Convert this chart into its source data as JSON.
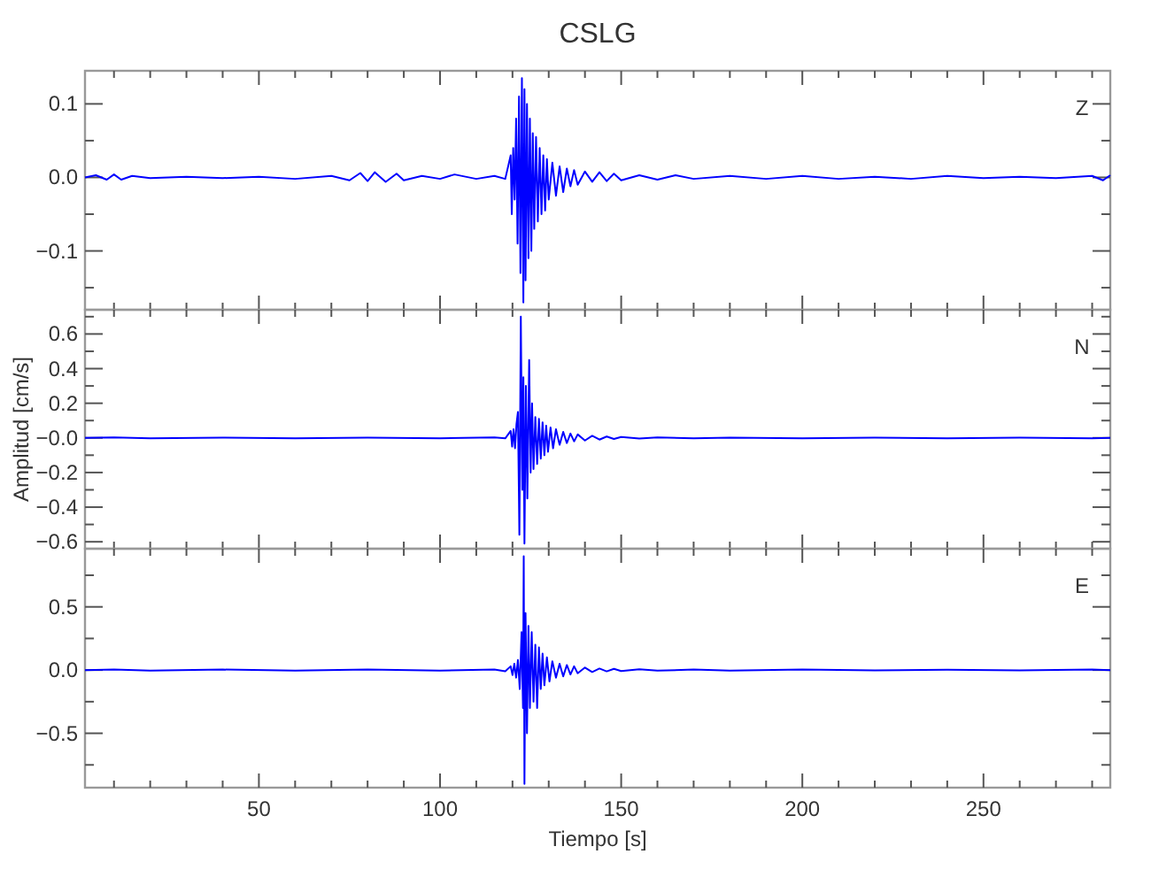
{
  "chart_data": [
    {
      "type": "line",
      "title": "CSLG",
      "annotations": [
        "Z"
      ],
      "xlim": [
        2,
        285
      ],
      "ylim": [
        -0.18,
        0.145
      ],
      "tick_labels": "y",
      "xticks": [
        {
          "value": 10,
          "label": null
        },
        {
          "value": 20,
          "label": null
        },
        {
          "value": 30,
          "label": null
        },
        {
          "value": 40,
          "label": null
        },
        50,
        {
          "value": 60,
          "label": null
        },
        {
          "value": 70,
          "label": null
        },
        {
          "value": 80,
          "label": null
        },
        {
          "value": 90,
          "label": null
        },
        100,
        {
          "value": 110,
          "label": null
        },
        {
          "value": 120,
          "label": null
        },
        {
          "value": 130,
          "label": null
        },
        {
          "value": 140,
          "label": null
        },
        150,
        {
          "value": 160,
          "label": null
        },
        {
          "value": 170,
          "label": null
        },
        {
          "value": 180,
          "label": null
        },
        {
          "value": 190,
          "label": null
        },
        200,
        {
          "value": 210,
          "label": null
        },
        {
          "value": 220,
          "label": null
        },
        {
          "value": 230,
          "label": null
        },
        {
          "value": 240,
          "label": null
        },
        250,
        {
          "value": 260,
          "label": null
        },
        {
          "value": 270,
          "label": null
        },
        {
          "value": 280,
          "label": null
        }
      ],
      "yticks": [
        {
          "value": -0.15,
          "label": null
        },
        {
          "value": -0.1,
          "label": "−0.1"
        },
        {
          "value": -0.05,
          "label": null
        },
        {
          "value": 0,
          "label": "0.0"
        },
        {
          "value": 0.05,
          "label": null
        },
        {
          "value": 0.1,
          "label": "0.1"
        }
      ],
      "x": [
        2,
        5,
        8,
        10,
        12,
        15,
        20,
        30,
        40,
        50,
        60,
        70,
        75,
        78,
        80,
        82,
        85,
        88,
        90,
        95,
        100,
        104,
        110,
        115,
        118,
        119.5,
        119.8,
        120.2,
        120.6,
        121,
        121.4,
        121.8,
        122.2,
        122.6,
        123,
        123.3,
        123.6,
        124,
        124.4,
        124.8,
        125.2,
        125.6,
        126,
        126.5,
        127,
        127.5,
        128,
        128.5,
        129,
        129.5,
        130,
        131,
        132,
        133,
        134,
        135,
        136,
        137,
        138,
        140,
        142,
        144,
        146,
        148,
        150,
        155,
        160,
        165,
        170,
        180,
        190,
        200,
        210,
        220,
        230,
        240,
        250,
        260,
        270,
        280,
        283,
        285
      ],
      "series": [
        {
          "color": "#0000ff",
          "values": [
            0,
            0.003,
            -0.003,
            0.004,
            -0.003,
            0.002,
            -0.001,
            0.001,
            -0.001,
            0.001,
            -0.002,
            0.002,
            -0.004,
            0.006,
            -0.005,
            0.007,
            -0.006,
            0.005,
            -0.004,
            0.002,
            -0.002,
            0.004,
            -0.002,
            0.002,
            -0.002,
            0.03,
            -0.05,
            0.04,
            -0.03,
            0.08,
            -0.09,
            0.11,
            -0.13,
            0.135,
            -0.17,
            0.12,
            -0.14,
            0.1,
            -0.11,
            0.08,
            -0.1,
            0.06,
            -0.07,
            0.055,
            -0.06,
            0.04,
            -0.05,
            0.03,
            -0.045,
            0.025,
            -0.03,
            0.02,
            -0.025,
            0.015,
            -0.02,
            0.012,
            -0.012,
            0.01,
            -0.01,
            0.008,
            -0.006,
            0.007,
            -0.005,
            0.005,
            -0.004,
            0.003,
            -0.003,
            0.003,
            -0.002,
            0.002,
            -0.002,
            0.002,
            -0.002,
            0.001,
            -0.002,
            0.002,
            -0.001,
            0.001,
            -0.001,
            0.002,
            -0.004,
            0.003
          ]
        }
      ]
    },
    {
      "type": "line",
      "ylabel": "Amplitud [cm/s]",
      "annotations": [
        "N"
      ],
      "xlim": [
        2,
        285
      ],
      "ylim": [
        -0.64,
        0.74
      ],
      "tick_labels": "y",
      "xticks": [
        {
          "value": 10,
          "label": null
        },
        {
          "value": 20,
          "label": null
        },
        {
          "value": 30,
          "label": null
        },
        {
          "value": 40,
          "label": null
        },
        50,
        {
          "value": 60,
          "label": null
        },
        {
          "value": 70,
          "label": null
        },
        {
          "value": 80,
          "label": null
        },
        {
          "value": 90,
          "label": null
        },
        100,
        {
          "value": 110,
          "label": null
        },
        {
          "value": 120,
          "label": null
        },
        {
          "value": 130,
          "label": null
        },
        {
          "value": 140,
          "label": null
        },
        150,
        {
          "value": 160,
          "label": null
        },
        {
          "value": 170,
          "label": null
        },
        {
          "value": 180,
          "label": null
        },
        {
          "value": 190,
          "label": null
        },
        200,
        {
          "value": 210,
          "label": null
        },
        {
          "value": 220,
          "label": null
        },
        {
          "value": 230,
          "label": null
        },
        {
          "value": 240,
          "label": null
        },
        250,
        {
          "value": 260,
          "label": null
        },
        {
          "value": 270,
          "label": null
        },
        {
          "value": 280,
          "label": null
        }
      ],
      "yticks": [
        {
          "value": -0.6,
          "label": "−0.6"
        },
        {
          "value": -0.5,
          "label": null
        },
        {
          "value": -0.4,
          "label": "−0.4"
        },
        {
          "value": -0.3,
          "label": null
        },
        {
          "value": -0.2,
          "label": "−0.2"
        },
        {
          "value": -0.1,
          "label": null
        },
        {
          "value": 0,
          "label": "−0.0"
        },
        {
          "value": 0.1,
          "label": null
        },
        {
          "value": 0.2,
          "label": "0.2"
        },
        {
          "value": 0.3,
          "label": null
        },
        {
          "value": 0.4,
          "label": "0.4"
        },
        {
          "value": 0.5,
          "label": null
        },
        {
          "value": 0.6,
          "label": "0.6"
        },
        {
          "value": 0.7,
          "label": null
        }
      ],
      "x": [
        2,
        10,
        20,
        40,
        60,
        80,
        100,
        115,
        118,
        119.5,
        119.9,
        120.3,
        120.7,
        121.1,
        121.5,
        121.9,
        122.3,
        122.7,
        123,
        123.3,
        123.7,
        124.1,
        124.6,
        125,
        125.4,
        125.8,
        126.3,
        126.8,
        127.3,
        127.8,
        128.3,
        128.8,
        129.3,
        129.8,
        130.5,
        131.2,
        132,
        133,
        134,
        135,
        136,
        137,
        138,
        140,
        142,
        144,
        146,
        148,
        150,
        155,
        160,
        170,
        180,
        200,
        220,
        240,
        260,
        280,
        285
      ],
      "series": [
        {
          "color": "#0000ff",
          "values": [
            0,
            0.003,
            -0.003,
            0.002,
            -0.002,
            0.002,
            -0.002,
            0.003,
            -0.003,
            0.04,
            -0.05,
            0.05,
            -0.06,
            0.08,
            0.15,
            -0.56,
            0.7,
            -0.3,
            0.35,
            -0.61,
            0.3,
            -0.35,
            0.45,
            -0.2,
            0.2,
            -0.18,
            0.12,
            -0.15,
            0.11,
            -0.12,
            0.09,
            -0.1,
            0.07,
            -0.08,
            0.06,
            -0.06,
            0.05,
            -0.04,
            0.035,
            -0.03,
            0.025,
            -0.02,
            0.02,
            -0.015,
            0.012,
            -0.01,
            0.008,
            -0.006,
            0.005,
            -0.004,
            0.003,
            -0.003,
            0.002,
            -0.002,
            0.002,
            -0.002,
            0.002,
            -0.002,
            0
          ]
        }
      ]
    },
    {
      "type": "line",
      "xlabel": "Tiempo [s]",
      "annotations": [
        "E"
      ],
      "xlim": [
        2,
        285
      ],
      "ylim": [
        -0.93,
        0.96
      ],
      "xticks": [
        {
          "value": 10,
          "label": null
        },
        {
          "value": 20,
          "label": null
        },
        {
          "value": 30,
          "label": null
        },
        {
          "value": 40,
          "label": null
        },
        50,
        {
          "value": 60,
          "label": null
        },
        {
          "value": 70,
          "label": null
        },
        {
          "value": 80,
          "label": null
        },
        {
          "value": 90,
          "label": null
        },
        100,
        {
          "value": 110,
          "label": null
        },
        {
          "value": 120,
          "label": null
        },
        {
          "value": 130,
          "label": null
        },
        {
          "value": 140,
          "label": null
        },
        150,
        {
          "value": 160,
          "label": null
        },
        {
          "value": 170,
          "label": null
        },
        {
          "value": 180,
          "label": null
        },
        {
          "value": 190,
          "label": null
        },
        200,
        {
          "value": 210,
          "label": null
        },
        {
          "value": 220,
          "label": null
        },
        {
          "value": 230,
          "label": null
        },
        {
          "value": 240,
          "label": null
        },
        250,
        {
          "value": 260,
          "label": null
        },
        {
          "value": 270,
          "label": null
        },
        {
          "value": 280,
          "label": null
        }
      ],
      "yticks": [
        {
          "value": -0.75,
          "label": null
        },
        {
          "value": -0.5,
          "label": "−0.5"
        },
        {
          "value": -0.25,
          "label": null
        },
        {
          "value": 0,
          "label": "0.0"
        },
        {
          "value": 0.25,
          "label": null
        },
        {
          "value": 0.5,
          "label": "0.5"
        },
        {
          "value": 0.75,
          "label": null
        }
      ],
      "x": [
        2,
        10,
        20,
        40,
        60,
        80,
        100,
        115,
        118,
        119.5,
        120,
        120.5,
        121,
        121.5,
        122,
        122.5,
        122.9,
        123.1,
        123.3,
        123.6,
        124,
        124.4,
        124.8,
        125.3,
        125.8,
        126.3,
        126.8,
        127.3,
        127.8,
        128.3,
        128.8,
        129.5,
        130.2,
        131,
        132,
        133,
        134,
        135,
        136,
        137,
        138,
        140,
        142,
        144,
        146,
        148,
        150,
        155,
        160,
        170,
        180,
        200,
        220,
        240,
        260,
        280,
        285
      ],
      "series": [
        {
          "color": "#0000ff",
          "values": [
            0,
            0.005,
            -0.005,
            0.004,
            -0.004,
            0.004,
            -0.004,
            0.005,
            -0.01,
            0.03,
            -0.04,
            0.05,
            -0.06,
            0.08,
            -0.15,
            0.3,
            -0.3,
            0.9,
            -0.9,
            0.45,
            -0.5,
            0.35,
            -0.3,
            0.3,
            -0.25,
            0.2,
            -0.3,
            0.18,
            -0.15,
            0.13,
            -0.12,
            0.1,
            -0.09,
            0.07,
            -0.06,
            0.05,
            -0.05,
            0.04,
            -0.035,
            0.03,
            -0.025,
            0.02,
            -0.015,
            0.012,
            -0.01,
            0.01,
            -0.008,
            0.006,
            -0.005,
            0.004,
            -0.004,
            0.004,
            -0.003,
            0.003,
            -0.003,
            0.004,
            0
          ]
        }
      ]
    }
  ]
}
